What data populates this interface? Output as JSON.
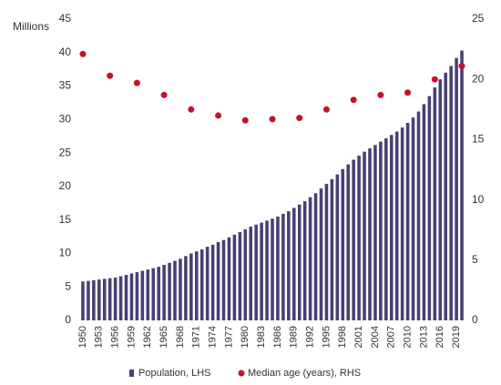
{
  "chart_data": {
    "type": "bar",
    "y_label": "Millions",
    "x": [
      1950,
      1951,
      1952,
      1953,
      1954,
      1955,
      1956,
      1957,
      1958,
      1959,
      1960,
      1961,
      1962,
      1963,
      1964,
      1965,
      1966,
      1967,
      1968,
      1969,
      1970,
      1971,
      1972,
      1973,
      1974,
      1975,
      1976,
      1977,
      1978,
      1979,
      1980,
      1981,
      1982,
      1983,
      1984,
      1985,
      1986,
      1987,
      1988,
      1989,
      1990,
      1991,
      1992,
      1993,
      1994,
      1995,
      1996,
      1997,
      1998,
      1999,
      2000,
      2001,
      2002,
      2003,
      2004,
      2005,
      2006,
      2007,
      2008,
      2009,
      2010,
      2011,
      2012,
      2013,
      2014,
      2015,
      2016,
      2017,
      2018,
      2019,
      2020
    ],
    "xlim": [
      1949.5,
      2020.5
    ],
    "xticks": [
      1950,
      1953,
      1956,
      1959,
      1962,
      1965,
      1968,
      1971,
      1974,
      1977,
      1980,
      1983,
      1986,
      1989,
      1992,
      1995,
      1998,
      2001,
      2004,
      2007,
      2010,
      2013,
      2016,
      2019
    ],
    "ylim": [
      0,
      45
    ],
    "yticks": [
      0,
      5,
      10,
      15,
      20,
      25,
      30,
      35,
      40,
      45
    ],
    "y2lim": [
      0,
      25
    ],
    "y2ticks": [
      0,
      5,
      10,
      15,
      20,
      25
    ],
    "series": [
      {
        "name": "Population, LHS",
        "type": "bar",
        "color": "#4a3f73",
        "values": [
          5.8,
          5.9,
          6.0,
          6.1,
          6.2,
          6.3,
          6.4,
          6.6,
          6.8,
          7.0,
          7.2,
          7.4,
          7.6,
          7.8,
          8.0,
          8.3,
          8.6,
          8.9,
          9.2,
          9.6,
          10.0,
          10.3,
          10.6,
          11.0,
          11.3,
          11.7,
          12.0,
          12.4,
          12.8,
          13.2,
          13.6,
          14.0,
          14.3,
          14.6,
          14.9,
          15.2,
          15.5,
          15.9,
          16.3,
          16.8,
          17.3,
          17.8,
          18.4,
          19.0,
          19.7,
          20.4,
          21.1,
          21.8,
          22.6,
          23.3,
          24.0,
          24.6,
          25.2,
          25.7,
          26.2,
          26.7,
          27.2,
          27.7,
          28.2,
          28.8,
          29.5,
          30.3,
          31.2,
          32.3,
          33.5,
          34.8,
          36.0,
          37.0,
          38.0,
          39.2,
          40.3
        ]
      },
      {
        "name": "Median age (years), RHS",
        "type": "scatter",
        "axis": "y2",
        "color": "#c8102e",
        "x": [
          1950,
          1955,
          1960,
          1965,
          1970,
          1975,
          1980,
          1985,
          1990,
          1995,
          2000,
          2005,
          2010,
          2015,
          2020
        ],
        "values": [
          22.1,
          20.3,
          19.7,
          18.7,
          17.5,
          17.0,
          16.6,
          16.7,
          16.8,
          17.5,
          18.3,
          18.7,
          18.9,
          20.0,
          21.1
        ]
      }
    ]
  }
}
